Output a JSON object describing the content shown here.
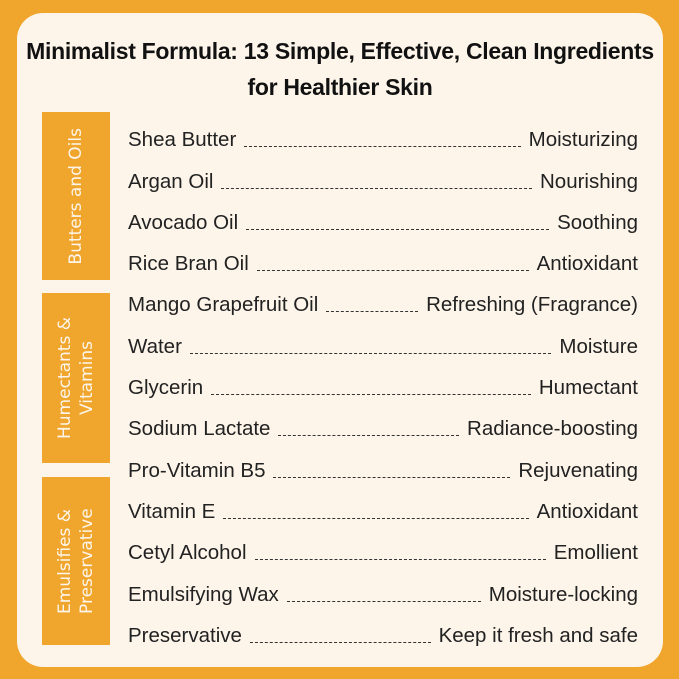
{
  "title": "Minimalist Formula: 13 Simple, Effective, Clean Ingredients for Healthier Skin",
  "colors": {
    "background": "#F0A62D",
    "card": "#FDF5EA",
    "category_box": "#F0A62D",
    "text": "#222222"
  },
  "categories": [
    {
      "label": "Butters and Oils"
    },
    {
      "label": "Humectants & Vitamins"
    },
    {
      "label": "Emulsifies & Preservative"
    }
  ],
  "ingredients": [
    {
      "name": "Shea Butter",
      "benefit": "Moisturizing"
    },
    {
      "name": "Argan Oil",
      "benefit": "Nourishing"
    },
    {
      "name": "Avocado Oil",
      "benefit": "Soothing"
    },
    {
      "name": "Rice Bran Oil",
      "benefit": "Antioxidant"
    },
    {
      "name": "Mango Grapefruit Oil",
      "benefit": "Refreshing (Fragrance)"
    },
    {
      "name": "Water",
      "benefit": "Moisture"
    },
    {
      "name": "Glycerin",
      "benefit": "Humectant"
    },
    {
      "name": "Sodium Lactate",
      "benefit": "Radiance-boosting"
    },
    {
      "name": "Pro-Vitamin B5",
      "benefit": "Rejuvenating"
    },
    {
      "name": "Vitamin E",
      "benefit": "Antioxidant"
    },
    {
      "name": "Cetyl Alcohol",
      "benefit": "Emollient"
    },
    {
      "name": "Emulsifying Wax",
      "benefit": "Moisture-locking"
    },
    {
      "name": "Preservative",
      "benefit": "Keep it fresh and safe"
    }
  ]
}
